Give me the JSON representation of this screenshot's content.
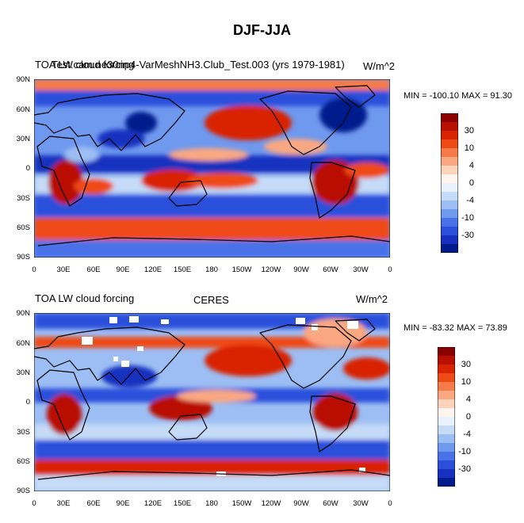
{
  "figure": {
    "title": "DJF-JJA"
  },
  "panels": [
    {
      "left_title": "TOA LW cloud forcing",
      "center_title": "Test.cam.ne30np4-VarMeshNH3.Club_Test.003 (yrs 1979-1981)",
      "right_title": "W/m^2",
      "min_max": "MIN = -100.10 MAX =  91.30"
    },
    {
      "left_title": "TOA LW cloud forcing",
      "center_title": "CERES",
      "right_title": "W/m^2",
      "min_max": "MIN = -83.32 MAX =  73.89"
    }
  ],
  "axes": {
    "lat_labels": [
      "90N",
      "60N",
      "30N",
      "0",
      "30S",
      "60S",
      "90S"
    ],
    "lon_labels": [
      "0",
      "30E",
      "60E",
      "90E",
      "120E",
      "150E",
      "180",
      "150W",
      "120W",
      "90W",
      "60W",
      "30W",
      "0"
    ]
  },
  "colorbar": {
    "labels": [
      "30",
      "10",
      "4",
      "0",
      "-4",
      "-10",
      "-30"
    ],
    "colors": [
      "#8b0000",
      "#b81000",
      "#d82400",
      "#ee4a14",
      "#f77a4a",
      "#fba882",
      "#fdd3bb",
      "#fff5ee",
      "#eaf3fd",
      "#c5dbf8",
      "#9dbef4",
      "#6f98ef",
      "#4a72e8",
      "#2b4fdb",
      "#1830bf",
      "#001b8c"
    ]
  },
  "colors": {
    "coast": "#000000",
    "missing": "#ffffff"
  }
}
